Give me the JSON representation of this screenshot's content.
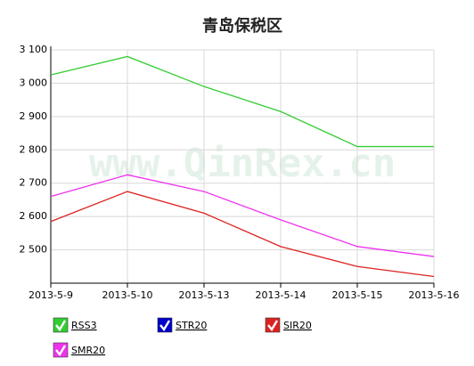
{
  "chart_data": {
    "type": "line",
    "title": "青岛保税区",
    "watermark": "www.QinRex.cn",
    "categories": [
      "2013-5-9",
      "2013-5-10",
      "2013-5-13",
      "2013-5-14",
      "2013-5-15",
      "2013-5-16"
    ],
    "series": [
      {
        "name": "RSS3",
        "color": "#33cc33",
        "values": [
          3025,
          3080,
          2990,
          2915,
          2810,
          2810
        ]
      },
      {
        "name": "STR20",
        "color": "#0000cc",
        "values": [
          null,
          null,
          null,
          null,
          null,
          null
        ]
      },
      {
        "name": "SIR20",
        "color": "#dd2222",
        "values": [
          2585,
          2675,
          2610,
          2510,
          2450,
          2420
        ]
      },
      {
        "name": "SMR20",
        "color": "#ee33ee",
        "values": [
          2660,
          2725,
          2675,
          2590,
          2510,
          2480
        ]
      }
    ],
    "ylim": [
      2400,
      3100
    ],
    "yticks": [
      {
        "value": 2500,
        "label": "2 500"
      },
      {
        "value": 2600,
        "label": "2 600"
      },
      {
        "value": 2700,
        "label": "2 700"
      },
      {
        "value": 2800,
        "label": "2 800"
      },
      {
        "value": 2900,
        "label": "2 900"
      },
      {
        "value": 3000,
        "label": "3 000"
      },
      {
        "value": 3100,
        "label": "3 100"
      }
    ],
    "grid": true
  }
}
